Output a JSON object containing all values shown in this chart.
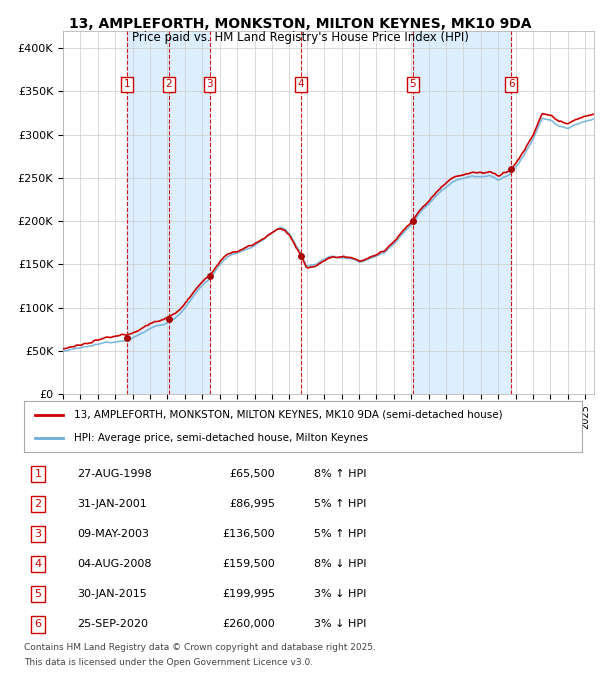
{
  "title": "13, AMPLEFORTH, MONKSTON, MILTON KEYNES, MK10 9DA",
  "subtitle": "Price paid vs. HM Land Registry's House Price Index (HPI)",
  "legend_line1": "13, AMPLEFORTH, MONKSTON, MILTON KEYNES, MK10 9DA (semi-detached house)",
  "legend_line2": "HPI: Average price, semi-detached house, Milton Keynes",
  "footer1": "Contains HM Land Registry data © Crown copyright and database right 2025.",
  "footer2": "This data is licensed under the Open Government Licence v3.0.",
  "sale_prices": [
    65500,
    86995,
    136500,
    159500,
    199995,
    260000
  ],
  "sale_labels": [
    "1",
    "2",
    "3",
    "4",
    "5",
    "6"
  ],
  "sale_table": [
    {
      "num": "1",
      "date": "27-AUG-1998",
      "price": "£65,500",
      "pct": "8%",
      "dir": "↑",
      "ref": "HPI"
    },
    {
      "num": "2",
      "date": "31-JAN-2001",
      "price": "£86,995",
      "pct": "5%",
      "dir": "↑",
      "ref": "HPI"
    },
    {
      "num": "3",
      "date": "09-MAY-2003",
      "price": "£136,500",
      "pct": "5%",
      "dir": "↑",
      "ref": "HPI"
    },
    {
      "num": "4",
      "date": "04-AUG-2008",
      "price": "£159,500",
      "pct": "8%",
      "dir": "↓",
      "ref": "HPI"
    },
    {
      "num": "5",
      "date": "30-JAN-2015",
      "price": "£199,995",
      "pct": "3%",
      "dir": "↓",
      "ref": "HPI"
    },
    {
      "num": "6",
      "date": "25-SEP-2020",
      "price": "£260,000",
      "pct": "3%",
      "dir": "↓",
      "ref": "HPI"
    }
  ],
  "hpi_color": "#6baed6",
  "price_color": "#cc0000",
  "sale_marker_color": "#aa0000",
  "sale_label_color": "#cc0000",
  "dashed_line_color": "#cc0000",
  "stripe_color": "#ddeeff",
  "background_fig": "#ffffff",
  "ylim": [
    0,
    420000
  ],
  "yticks": [
    0,
    50000,
    100000,
    150000,
    200000,
    250000,
    300000,
    350000,
    400000
  ],
  "ytick_labels": [
    "£0",
    "£50K",
    "£100K",
    "£150K",
    "£200K",
    "£250K",
    "£300K",
    "£350K",
    "£400K"
  ],
  "xstart": 1995.0,
  "xend": 2025.5
}
